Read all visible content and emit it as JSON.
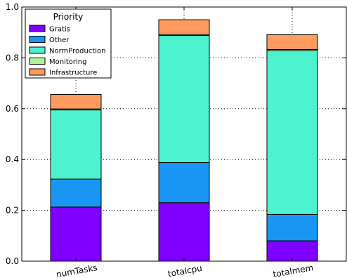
{
  "chart_data": {
    "type": "bar",
    "stacked": true,
    "categories": [
      "numTasks",
      "totalcpu",
      "totalmem"
    ],
    "series": [
      {
        "name": "Gratis",
        "color": "#7f00ff",
        "values": [
          0.213,
          0.23,
          0.08
        ]
      },
      {
        "name": "Other",
        "color": "#1996f3",
        "values": [
          0.11,
          0.158,
          0.104
        ]
      },
      {
        "name": "NormProduction",
        "color": "#4df3ce",
        "values": [
          0.272,
          0.5,
          0.645
        ]
      },
      {
        "name": "Monitoring",
        "color": "#b2f396",
        "values": [
          0.004,
          0.004,
          0.004
        ]
      },
      {
        "name": "Infrastructure",
        "color": "#ff9b5e",
        "values": [
          0.057,
          0.058,
          0.058
        ]
      }
    ],
    "legend": {
      "title": "Priority",
      "position": "top-left"
    },
    "ylim": [
      0,
      1.0
    ],
    "yticks": [
      "0.0",
      "0.2",
      "0.4",
      "0.6",
      "0.8",
      "1.0"
    ],
    "grid": true,
    "xlabel": "",
    "ylabel": ""
  }
}
